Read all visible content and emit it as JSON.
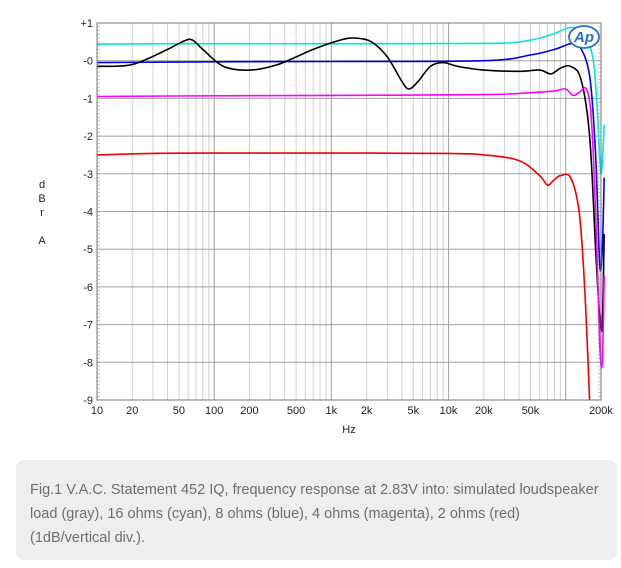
{
  "chart_data": {
    "type": "line",
    "xlabel": "Hz",
    "ylabel": "dBr A",
    "ylabel_letters": [
      "d",
      "B",
      "r",
      "A"
    ],
    "xscale": "log",
    "xlim": [
      10,
      200000
    ],
    "ylim": [
      -9,
      1
    ],
    "grid": true,
    "logo": "Ap",
    "x_ticks": [
      {
        "value": 10,
        "label": "10"
      },
      {
        "value": 20,
        "label": "20"
      },
      {
        "value": 50,
        "label": "50"
      },
      {
        "value": 100,
        "label": "100"
      },
      {
        "value": 200,
        "label": "200"
      },
      {
        "value": 500,
        "label": "500"
      },
      {
        "value": 1000,
        "label": "1k"
      },
      {
        "value": 2000,
        "label": "2k"
      },
      {
        "value": 5000,
        "label": "5k"
      },
      {
        "value": 10000,
        "label": "10k"
      },
      {
        "value": 20000,
        "label": "20k"
      },
      {
        "value": 50000,
        "label": "50k"
      },
      {
        "value": 200000,
        "label": "200k"
      }
    ],
    "y_ticks": [
      {
        "value": 1,
        "label": "+1"
      },
      {
        "value": 0,
        "label": "-0"
      },
      {
        "value": -1,
        "label": "-1"
      },
      {
        "value": -2,
        "label": "-2"
      },
      {
        "value": -3,
        "label": "-3"
      },
      {
        "value": -4,
        "label": "-4"
      },
      {
        "value": -5,
        "label": "-5"
      },
      {
        "value": -6,
        "label": "-6"
      },
      {
        "value": -7,
        "label": "-7"
      },
      {
        "value": -8,
        "label": "-8"
      },
      {
        "value": -9,
        "label": "-9"
      }
    ],
    "series": [
      {
        "color": "#00e5e5",
        "points": [
          [
            10,
            0.44
          ],
          [
            50,
            0.45
          ],
          [
            1000,
            0.45
          ],
          [
            20000,
            0.46
          ],
          [
            40000,
            0.5
          ],
          [
            60000,
            0.6
          ],
          [
            80000,
            0.72
          ],
          [
            110000,
            0.88
          ],
          [
            140000,
            0.75
          ],
          [
            170000,
            0.1
          ],
          [
            185000,
            -1.2
          ],
          [
            200000,
            -3.0
          ],
          [
            213000,
            -1.7
          ]
        ]
      },
      {
        "color": "#0000dd",
        "points": [
          [
            10,
            -0.05
          ],
          [
            100,
            -0.03
          ],
          [
            1000,
            -0.02
          ],
          [
            20000,
            0.0
          ],
          [
            50000,
            0.15
          ],
          [
            80000,
            0.3
          ],
          [
            110000,
            0.45
          ],
          [
            130000,
            0.4
          ],
          [
            160000,
            -0.4
          ],
          [
            180000,
            -2.5
          ],
          [
            195000,
            -5.4
          ],
          [
            205000,
            -5.0
          ],
          [
            213000,
            -3.1
          ]
        ]
      },
      {
        "color": "#000000",
        "points": [
          [
            10,
            -0.15
          ],
          [
            20,
            -0.1
          ],
          [
            40,
            0.3
          ],
          [
            55,
            0.52
          ],
          [
            65,
            0.55
          ],
          [
            80,
            0.3
          ],
          [
            120,
            -0.15
          ],
          [
            200,
            -0.25
          ],
          [
            350,
            -0.1
          ],
          [
            700,
            0.3
          ],
          [
            1200,
            0.55
          ],
          [
            1600,
            0.6
          ],
          [
            2200,
            0.5
          ],
          [
            3000,
            0.1
          ],
          [
            4000,
            -0.55
          ],
          [
            4600,
            -0.75
          ],
          [
            5500,
            -0.55
          ],
          [
            7000,
            -0.15
          ],
          [
            9000,
            -0.05
          ],
          [
            12000,
            -0.15
          ],
          [
            20000,
            -0.25
          ],
          [
            40000,
            -0.28
          ],
          [
            60000,
            -0.25
          ],
          [
            75000,
            -0.35
          ],
          [
            90000,
            -0.2
          ],
          [
            110000,
            -0.15
          ],
          [
            135000,
            -0.5
          ],
          [
            160000,
            -2.0
          ],
          [
            180000,
            -5.0
          ],
          [
            195000,
            -6.8
          ],
          [
            205000,
            -7.0
          ],
          [
            213000,
            -4.6
          ]
        ]
      },
      {
        "color": "#ff00ff",
        "points": [
          [
            10,
            -0.95
          ],
          [
            100,
            -0.93
          ],
          [
            1000,
            -0.92
          ],
          [
            20000,
            -0.9
          ],
          [
            50000,
            -0.85
          ],
          [
            80000,
            -0.8
          ],
          [
            100000,
            -0.75
          ],
          [
            115000,
            -0.92
          ],
          [
            130000,
            -0.85
          ],
          [
            150000,
            -0.75
          ],
          [
            165000,
            -1.5
          ],
          [
            180000,
            -4.0
          ],
          [
            195000,
            -7.5
          ],
          [
            205000,
            -8.0
          ],
          [
            213000,
            -5.7
          ]
        ]
      },
      {
        "color": "#ee0000",
        "points": [
          [
            10,
            -2.5
          ],
          [
            30,
            -2.46
          ],
          [
            100,
            -2.45
          ],
          [
            1000,
            -2.45
          ],
          [
            10000,
            -2.46
          ],
          [
            20000,
            -2.5
          ],
          [
            40000,
            -2.65
          ],
          [
            60000,
            -3.05
          ],
          [
            70000,
            -3.3
          ],
          [
            80000,
            -3.15
          ],
          [
            90000,
            -3.05
          ],
          [
            110000,
            -3.1
          ],
          [
            130000,
            -4.0
          ],
          [
            145000,
            -6.0
          ],
          [
            160000,
            -9.0
          ]
        ]
      }
    ]
  },
  "caption": "Fig.1 V.A.C. Statement 452 IQ, frequency response at 2.83V into: simulated loudspeaker load (gray), 16 ohms (cyan), 8 ohms (blue), 4 ohms (magenta), 2 ohms (red) (1dB/vertical div.)."
}
